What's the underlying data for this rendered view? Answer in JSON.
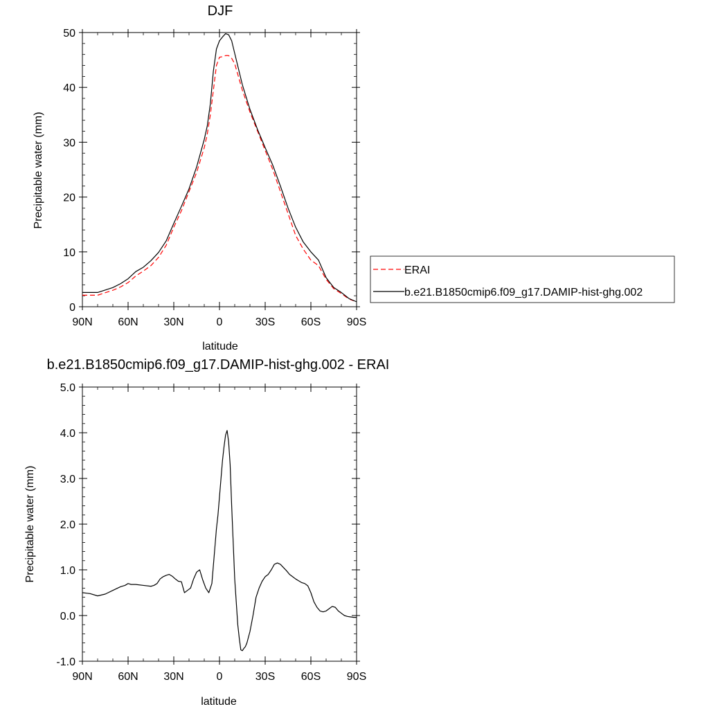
{
  "chart_data": [
    {
      "type": "line",
      "title": "DJF",
      "xlabel": "latitude",
      "ylabel": "Precipitable water (mm)",
      "xlim": [
        90,
        -90
      ],
      "ylim": [
        0,
        50
      ],
      "x_ticks": [
        90,
        60,
        30,
        0,
        -30,
        -60,
        -90
      ],
      "x_tick_labels": [
        "90N",
        "60N",
        "30N",
        "0",
        "30S",
        "60S",
        "90S"
      ],
      "y_ticks": [
        0,
        10,
        20,
        30,
        40,
        50
      ],
      "y_tick_labels": [
        "0",
        "10",
        "20",
        "30",
        "40",
        "50"
      ],
      "grid": false,
      "legend_position": "right",
      "series": [
        {
          "name": "ERAI",
          "color": "#ff0000",
          "dash": true,
          "x": [
            90,
            80,
            70,
            65,
            60,
            55,
            50,
            45,
            40,
            35,
            30,
            25,
            20,
            15,
            10,
            8,
            6,
            4,
            2,
            0,
            -2,
            -4,
            -6,
            -8,
            -10,
            -15,
            -20,
            -25,
            -30,
            -35,
            -40,
            -45,
            -50,
            -55,
            -60,
            -65,
            -70,
            -75,
            -80,
            -85,
            -90
          ],
          "y": [
            2.1,
            2.1,
            3.0,
            3.6,
            4.4,
            5.6,
            6.5,
            7.5,
            9.0,
            11.2,
            14.5,
            17.5,
            21.0,
            24.5,
            29.0,
            31.5,
            35.0,
            39.5,
            44.0,
            45.5,
            45.6,
            45.8,
            45.8,
            45.3,
            44.3,
            39.5,
            35.5,
            32.0,
            28.5,
            25.0,
            21.0,
            17.0,
            13.0,
            10.5,
            8.5,
            7.5,
            5.0,
            3.3,
            2.4,
            1.4,
            0.9
          ]
        },
        {
          "name": "b.e21.B1850cmip6.f09_g17.DAMIP-hist-ghg.002",
          "color": "#000000",
          "dash": false,
          "x": [
            90,
            80,
            70,
            65,
            60,
            55,
            50,
            45,
            40,
            35,
            30,
            25,
            20,
            15,
            10,
            8,
            6,
            4,
            2,
            0,
            -2,
            -4,
            -6,
            -8,
            -10,
            -15,
            -20,
            -25,
            -30,
            -35,
            -40,
            -45,
            -50,
            -55,
            -60,
            -65,
            -70,
            -75,
            -80,
            -85,
            -90
          ],
          "y": [
            2.6,
            2.6,
            3.5,
            4.2,
            5.1,
            6.4,
            7.2,
            8.4,
            9.9,
            12.0,
            15.2,
            18.3,
            21.5,
            25.5,
            30.5,
            33.0,
            37.0,
            43.0,
            47.0,
            48.5,
            49.2,
            49.8,
            49.6,
            48.5,
            46.2,
            40.5,
            36.0,
            32.3,
            29.0,
            25.8,
            22.0,
            18.0,
            14.5,
            11.8,
            10.0,
            8.5,
            5.3,
            3.5,
            2.6,
            1.5,
            0.9
          ]
        }
      ]
    },
    {
      "type": "line",
      "title": "b.e21.B1850cmip6.f09_g17.DAMIP-hist-ghg.002 - ERAI",
      "xlabel": "latitude",
      "ylabel": "Precipitable water (mm)",
      "xlim": [
        90,
        -90
      ],
      "ylim": [
        -1.0,
        5.0
      ],
      "x_ticks": [
        90,
        60,
        30,
        0,
        -30,
        -60,
        -90
      ],
      "x_tick_labels": [
        "90N",
        "60N",
        "30N",
        "0",
        "30S",
        "60S",
        "90S"
      ],
      "y_ticks": [
        -1.0,
        0.0,
        1.0,
        2.0,
        3.0,
        4.0,
        5.0
      ],
      "y_tick_labels": [
        "-1.0",
        "0.0",
        "1.0",
        "2.0",
        "3.0",
        "4.0",
        "5.0"
      ],
      "grid": false,
      "series": [
        {
          "color": "#000000",
          "dash": false,
          "x": [
            90,
            85,
            80,
            75,
            70,
            65,
            62,
            60,
            58,
            55,
            50,
            45,
            43,
            41,
            39,
            37,
            35,
            33,
            31,
            29,
            27,
            25,
            23,
            21,
            19,
            17,
            15,
            13,
            11,
            9,
            7,
            5,
            4,
            3,
            2,
            1,
            0,
            -1,
            -2,
            -3,
            -4,
            -5,
            -6,
            -7,
            -8,
            -9,
            -10,
            -11,
            -12,
            -13,
            -14,
            -15,
            -16,
            -17,
            -18,
            -20,
            -22,
            -24,
            -26,
            -28,
            -30,
            -32,
            -34,
            -36,
            -38,
            -40,
            -42,
            -44,
            -46,
            -48,
            -50,
            -52,
            -54,
            -56,
            -58,
            -60,
            -62,
            -64,
            -66,
            -68,
            -70,
            -72,
            -74,
            -76,
            -78,
            -80,
            -82,
            -84,
            -86,
            -88,
            -90
          ],
          "y": [
            0.5,
            0.48,
            0.43,
            0.47,
            0.55,
            0.63,
            0.66,
            0.7,
            0.68,
            0.68,
            0.66,
            0.64,
            0.66,
            0.7,
            0.8,
            0.85,
            0.88,
            0.9,
            0.86,
            0.8,
            0.75,
            0.74,
            0.5,
            0.55,
            0.6,
            0.8,
            0.95,
            1.0,
            0.78,
            0.6,
            0.5,
            0.7,
            1.1,
            1.5,
            1.9,
            2.2,
            2.6,
            3.0,
            3.4,
            3.7,
            3.95,
            4.05,
            3.8,
            3.3,
            2.4,
            1.6,
            0.8,
            0.3,
            -0.2,
            -0.5,
            -0.75,
            -0.77,
            -0.72,
            -0.68,
            -0.6,
            -0.35,
            0.0,
            0.4,
            0.6,
            0.75,
            0.85,
            0.9,
            1.0,
            1.12,
            1.15,
            1.12,
            1.05,
            0.98,
            0.9,
            0.85,
            0.8,
            0.76,
            0.72,
            0.7,
            0.65,
            0.5,
            0.3,
            0.18,
            0.1,
            0.08,
            0.1,
            0.15,
            0.2,
            0.18,
            0.1,
            0.05,
            0.0,
            -0.02,
            -0.03,
            -0.04,
            -0.04
          ]
        }
      ]
    }
  ]
}
